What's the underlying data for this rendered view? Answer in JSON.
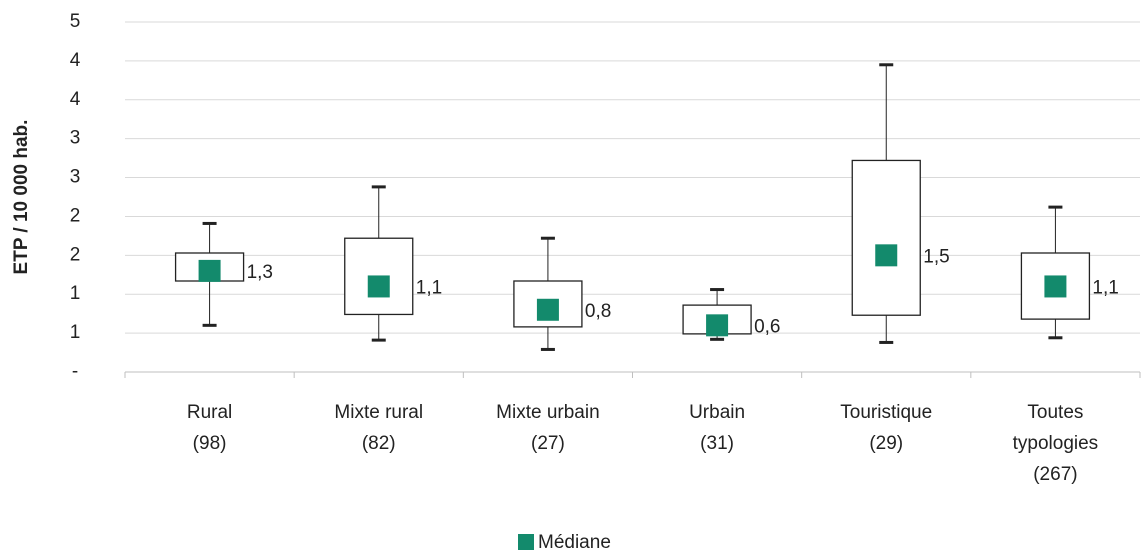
{
  "chart_data": {
    "type": "box",
    "y_label": "ETP / 10 000 hab.",
    "categories": [
      [
        "Rural",
        "(98)"
      ],
      [
        "Mixte rural",
        "(82)"
      ],
      [
        "Mixte urbain",
        "(27)"
      ],
      [
        "Urbain",
        "(31)"
      ],
      [
        "Touristique",
        "(29)"
      ],
      [
        "Toutes",
        "typologies",
        "(267)"
      ]
    ],
    "series": [
      {
        "name": "Médiane",
        "color": "#138a6c",
        "low": [
          0.6,
          0.41,
          0.29,
          0.42,
          0.38,
          0.44
        ],
        "q1": [
          1.17,
          0.74,
          0.58,
          0.49,
          0.73,
          0.68
        ],
        "values": [
          1.3,
          1.1,
          0.8,
          0.6,
          1.5,
          1.1
        ],
        "value_labels": [
          "1,3",
          "1,1",
          "0,8",
          "0,6",
          "1,5",
          "1,1"
        ],
        "q3": [
          1.53,
          1.72,
          1.17,
          0.86,
          2.72,
          1.53
        ],
        "high": [
          1.91,
          2.38,
          1.72,
          1.06,
          3.95,
          2.12
        ]
      }
    ],
    "ylim": [
      0,
      4.5
    ],
    "yticks": [
      {
        "value": 0,
        "label": "-"
      },
      {
        "value": 0.5,
        "label": "1"
      },
      {
        "value": 1,
        "label": "1"
      },
      {
        "value": 1.5,
        "label": "2"
      },
      {
        "value": 2,
        "label": "2"
      },
      {
        "value": 2.5,
        "label": "3"
      },
      {
        "value": 3,
        "label": "3"
      },
      {
        "value": 3.5,
        "label": "4"
      },
      {
        "value": 4,
        "label": "4"
      },
      {
        "value": 4.5,
        "label": "5"
      }
    ],
    "grid": true,
    "legend": "bottom"
  }
}
